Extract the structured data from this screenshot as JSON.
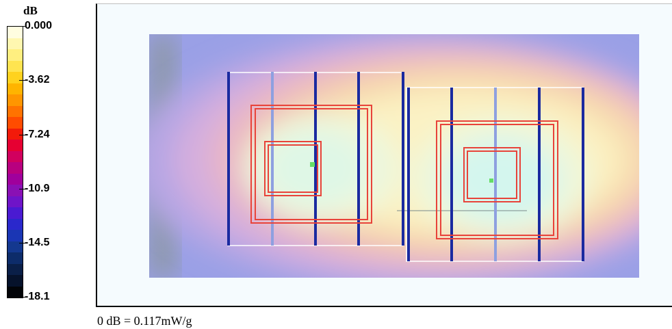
{
  "chart_data": {
    "type": "heatmap",
    "colorbar": {
      "unit": "dB",
      "ticks": [
        "0.000",
        "-3.62",
        "-7.24",
        "-10.9",
        "-14.5",
        "-18.1"
      ],
      "range": [
        -18.1,
        0.0
      ],
      "colors": [
        "#fffde0",
        "#fff7b0",
        "#ffef80",
        "#ffe450",
        "#ffd21e",
        "#ffb400",
        "#ff9600",
        "#ff7300",
        "#ff4c00",
        "#f21a0a",
        "#e60032",
        "#d1005e",
        "#b8007f",
        "#a0009c",
        "#8a10b4",
        "#6f14c8",
        "#4a1ad2",
        "#2a28cc",
        "#1a36b4",
        "#14388f",
        "#0d2c6a",
        "#0a1f48",
        "#06122b",
        "#020408"
      ]
    },
    "footer": "0 dB = 0.117mW/g"
  },
  "theme": {
    "field_colors": [
      "#9aa0e6",
      "#b6a6e4",
      "#d4aede",
      "#e9b6c6",
      "#f2c6b4",
      "#f7d8b0",
      "#f9e7b6",
      "#fbf2c4",
      "#eef7dc",
      "#dff7e6",
      "#d4f6ee"
    ],
    "coil_color": "#e8433a",
    "bar_dark": "#1a2aa0",
    "bar_light": "#8ea0e0"
  }
}
